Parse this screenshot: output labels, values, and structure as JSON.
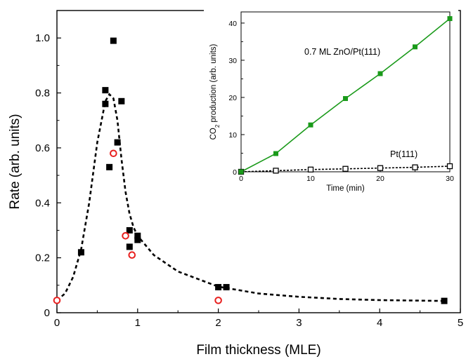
{
  "chart_data": [
    {
      "type": "scatter",
      "xlabel": "Film thickness (MLE)",
      "ylabel": "Rate (arb. units)",
      "xlim": [
        0,
        5
      ],
      "ylim": [
        0,
        1.1
      ],
      "xticks": [
        "0",
        "1",
        "2",
        "3",
        "4",
        "5"
      ],
      "yticks": [
        "0",
        "0.2",
        "0.4",
        "0.6",
        "0.8",
        "1.0"
      ],
      "grid": false,
      "series": [
        {
          "marker": "filled-square",
          "color": "#000000",
          "points": [
            [
              0.3,
              0.22
            ],
            [
              0.6,
              0.81
            ],
            [
              0.6,
              0.76
            ],
            [
              0.65,
              0.53
            ],
            [
              0.7,
              0.99
            ],
            [
              0.75,
              0.62
            ],
            [
              0.8,
              0.77
            ],
            [
              0.9,
              0.3
            ],
            [
              0.9,
              0.24
            ],
            [
              1.0,
              0.28
            ],
            [
              1.0,
              0.265
            ],
            [
              2.0,
              0.093
            ],
            [
              2.1,
              0.093
            ],
            [
              4.8,
              0.043
            ]
          ]
        },
        {
          "marker": "open-circle",
          "color": "#e8201f",
          "points": [
            [
              0.0,
              0.045
            ],
            [
              0.7,
              0.58
            ],
            [
              0.85,
              0.28
            ],
            [
              0.93,
              0.21
            ],
            [
              2.0,
              0.045
            ]
          ]
        },
        {
          "style": "dashed-line",
          "color": "#000000",
          "points": [
            [
              0.0,
              0.045
            ],
            [
              0.1,
              0.07
            ],
            [
              0.2,
              0.13
            ],
            [
              0.3,
              0.23
            ],
            [
              0.4,
              0.4
            ],
            [
              0.5,
              0.62
            ],
            [
              0.6,
              0.77
            ],
            [
              0.65,
              0.795
            ],
            [
              0.7,
              0.78
            ],
            [
              0.75,
              0.7
            ],
            [
              0.8,
              0.56
            ],
            [
              0.85,
              0.44
            ],
            [
              0.9,
              0.36
            ],
            [
              0.95,
              0.31
            ],
            [
              1.0,
              0.28
            ],
            [
              1.2,
              0.21
            ],
            [
              1.5,
              0.15
            ],
            [
              2.0,
              0.095
            ],
            [
              2.5,
              0.07
            ],
            [
              3.0,
              0.058
            ],
            [
              3.5,
              0.05
            ],
            [
              4.0,
              0.046
            ],
            [
              4.8,
              0.043
            ]
          ]
        }
      ]
    },
    {
      "type": "line",
      "xlabel": "Time (min)",
      "ylabel_prefix": "CO",
      "ylabel_sub": "2",
      "ylabel_suffix": " production (arb. units)",
      "xlim": [
        0,
        30
      ],
      "ylim": [
        0,
        43
      ],
      "xticks": [
        "0",
        "10",
        "20",
        "30"
      ],
      "yticks": [
        "0",
        "10",
        "20",
        "30",
        "40"
      ],
      "series": [
        {
          "name": "0.7 ML ZnO/Pt(111)",
          "color": "#1a9a1a",
          "marker": "filled-square",
          "x": [
            0,
            5,
            10,
            15,
            20,
            25,
            30
          ],
          "y": [
            0,
            4.9,
            12.6,
            19.7,
            26.4,
            33.6,
            41.2
          ]
        },
        {
          "name": "Pt(111)",
          "color": "#000000",
          "marker": "open-square",
          "line": "dashed",
          "x": [
            0,
            5,
            10,
            15,
            20,
            25,
            30
          ],
          "y": [
            0,
            0.3,
            0.6,
            0.8,
            1.0,
            1.2,
            1.5
          ]
        }
      ]
    }
  ]
}
